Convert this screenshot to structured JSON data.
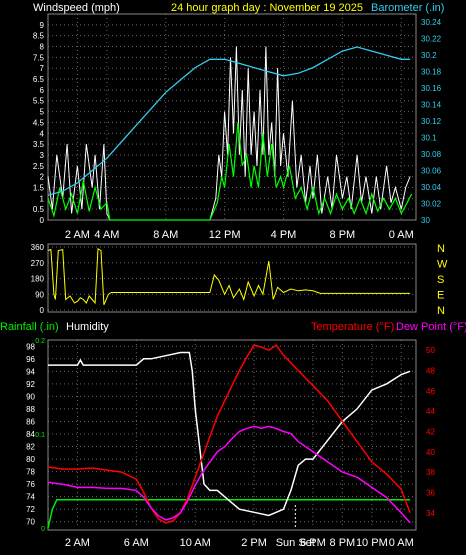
{
  "colors": {
    "wind": "#ffffff",
    "gust": "#00ff00",
    "barometer": "#33ccee",
    "direction": "#ffff00",
    "rain": "#00ee00",
    "humidity": "#ffffff",
    "temperature": "#ff0000",
    "dewpoint": "#ff00ff",
    "axis": "#ffffff",
    "grid": "#666666",
    "left_label": "#ffffff",
    "sunset_marker": "#ffffff"
  },
  "chart_data": [
    {
      "type": "line",
      "title": "24 hour graph day : November 19 2025",
      "left_axis_label": "Windspeed (mph)",
      "right_axis_label": "Barometer (.in)",
      "x_tick_labels": [
        "2 AM",
        "4 AM",
        "8 AM",
        "12 PM",
        "4 PM",
        "8 PM",
        "0 AM"
      ],
      "x_tick_hours": [
        2,
        4,
        8,
        12,
        16,
        20,
        24
      ],
      "xlim": [
        0,
        25
      ],
      "ylim": [
        0,
        9.5
      ],
      "y_ticks": [
        "0",
        "0.5",
        "1",
        "1.5",
        "2",
        "2.5",
        "3",
        "3.5",
        "4",
        "4.5",
        "5",
        "5.5",
        "6",
        "6.5",
        "7",
        "7.5",
        "8",
        "8.5",
        "9"
      ],
      "y2lim": [
        30.0,
        30.25
      ],
      "y2_ticks": [
        "30",
        "30.02",
        "30.04",
        "30.06",
        "30.08",
        "30.1",
        "30.12",
        "30.14",
        "30.16",
        "30.18",
        "30.2",
        "30.22",
        "30.24"
      ],
      "series": [
        {
          "key": "wind",
          "x": [
            0,
            0.3,
            0.6,
            1,
            1.3,
            1.6,
            2,
            2.3,
            2.6,
            3,
            3.2,
            3.5,
            3.8,
            4,
            4.2,
            4.5,
            5,
            6,
            7,
            8,
            9,
            10,
            11,
            11.4,
            11.6,
            11.8,
            12,
            12.2,
            12.4,
            12.6,
            12.8,
            13,
            13.2,
            13.4,
            13.6,
            13.8,
            14,
            14.2,
            14.4,
            14.6,
            14.8,
            15,
            15.2,
            15.4,
            15.6,
            15.8,
            16,
            16.3,
            16.6,
            16.9,
            17.2,
            17.5,
            17.8,
            18,
            18.3,
            18.6,
            19,
            19.3,
            19.6,
            20,
            20.3,
            20.6,
            21,
            21.3,
            21.6,
            22,
            22.3,
            22.6,
            23,
            23.3,
            23.6,
            24,
            24.3,
            24.6
          ],
          "y": [
            2,
            0.5,
            3,
            1,
            3.5,
            0.3,
            2.5,
            0.5,
            3.5,
            1.5,
            3,
            0.5,
            3.5,
            0.3,
            0,
            0,
            0,
            0,
            0,
            0,
            0,
            0,
            0,
            1,
            3,
            2,
            5,
            3,
            7.5,
            4,
            8,
            3,
            6,
            2,
            7,
            3,
            5,
            2.5,
            6,
            3,
            8,
            3,
            4.5,
            2,
            7,
            2.5,
            4,
            2,
            5.5,
            1.5,
            3,
            0.8,
            2.5,
            1,
            3,
            0.3,
            2,
            0.5,
            3,
            1,
            2,
            0.5,
            3,
            0.8,
            2,
            0.3,
            2,
            0.5,
            2.5,
            0.8,
            1.5,
            0.5,
            1.5,
            2
          ]
        },
        {
          "key": "gust",
          "x": [
            0,
            0.4,
            0.8,
            1.2,
            1.6,
            2,
            2.4,
            2.8,
            3.2,
            3.6,
            4,
            4.2,
            5,
            6,
            7,
            8,
            9,
            10,
            11,
            11.5,
            11.8,
            12,
            12.3,
            12.6,
            12.9,
            13.2,
            13.5,
            13.8,
            14,
            14.3,
            14.6,
            14.9,
            15.2,
            15.5,
            15.8,
            16,
            16.4,
            16.8,
            17.2,
            17.6,
            18,
            18.4,
            18.8,
            19.2,
            19.6,
            20,
            20.4,
            20.8,
            21.2,
            21.6,
            22,
            22.4,
            22.8,
            23.2,
            23.6,
            24,
            24.4,
            24.7
          ],
          "y": [
            1,
            0.2,
            1.5,
            0.5,
            1.2,
            0.3,
            1.8,
            0.4,
            1.5,
            0.5,
            0.8,
            0,
            0,
            0,
            0,
            0,
            0,
            0,
            0,
            0.8,
            2,
            1.5,
            3.5,
            2,
            4.5,
            2.5,
            3,
            1.5,
            2.5,
            1.5,
            4,
            2,
            3.5,
            1.5,
            2,
            1.5,
            2.5,
            1,
            1.5,
            0.5,
            1.5,
            0.3,
            1,
            0.3,
            1.2,
            0.5,
            1,
            0.3,
            1,
            0.3,
            1.2,
            0.4,
            1,
            0.5,
            1,
            0.3,
            0.8,
            1.2
          ]
        },
        {
          "key": "barometer",
          "x": [
            0,
            1,
            2,
            3,
            4,
            5,
            6,
            7,
            8,
            9,
            10,
            11,
            12,
            13,
            14,
            15,
            16,
            17,
            18,
            19,
            20,
            21,
            22,
            23,
            24,
            24.6
          ],
          "y": [
            30.03,
            30.035,
            30.045,
            30.06,
            30.075,
            30.095,
            30.115,
            30.135,
            30.155,
            30.17,
            30.185,
            30.195,
            30.195,
            30.19,
            30.185,
            30.18,
            30.175,
            30.178,
            30.185,
            30.195,
            30.205,
            30.21,
            30.205,
            30.2,
            30.195,
            30.195
          ]
        }
      ]
    },
    {
      "type": "line",
      "title": "",
      "right_labels": [
        "N",
        "W",
        "S",
        "E",
        "N"
      ],
      "y_ticks": [
        "360",
        "270",
        "180",
        "90",
        "0"
      ],
      "ylim": [
        0,
        360
      ],
      "xlim": [
        0,
        25
      ],
      "series": [
        {
          "key": "direction",
          "x": [
            0,
            0.2,
            0.4,
            0.5,
            0.7,
            1,
            1.2,
            1.5,
            1.8,
            2,
            2.2,
            2.4,
            2.6,
            2.8,
            3,
            3.2,
            3.4,
            3.6,
            3.8,
            4,
            4.1,
            4.3,
            5,
            6,
            7,
            8,
            9,
            10,
            11,
            11.3,
            11.6,
            12,
            12.3,
            12.6,
            13,
            13.3,
            13.6,
            14,
            14.3,
            14.6,
            15,
            15.3,
            15.6,
            16,
            16.5,
            17,
            17.5,
            18,
            18.5,
            19,
            20,
            21,
            22,
            23,
            24,
            24.6
          ],
          "y": [
            340,
            345,
            90,
            60,
            340,
            345,
            60,
            80,
            40,
            50,
            70,
            60,
            40,
            80,
            60,
            40,
            350,
            340,
            30,
            70,
            90,
            100,
            100,
            100,
            100,
            100,
            100,
            100,
            100,
            200,
            170,
            90,
            140,
            70,
            120,
            60,
            160,
            80,
            140,
            90,
            280,
            60,
            130,
            100,
            120,
            110,
            115,
            110,
            95,
            95,
            95,
            95,
            95,
            95,
            95,
            95
          ]
        }
      ]
    },
    {
      "type": "line",
      "title": "",
      "left_axis_label": "Rainfall (.in)",
      "left_axis_label2": "Humidity",
      "right_axis_label": "Temperature (°F)",
      "right_axis_label2": "Dew Point (°F)",
      "x_tick_labels": [
        "2 AM",
        "6 AM",
        "10 AM",
        "2 PM",
        "6 PM",
        "8 PM",
        "10 PM",
        "0 AM"
      ],
      "x_tick_hours": [
        2,
        6,
        10,
        14,
        18,
        20,
        22,
        24
      ],
      "annotation": "Sun Set",
      "annotation_hour": 16.8,
      "xlim": [
        0,
        25
      ],
      "ylim": [
        69,
        99
      ],
      "y_ticks": [
        "70",
        "72",
        "74",
        "76",
        "78",
        "80",
        "82",
        "84",
        "86",
        "88",
        "90",
        "92",
        "94",
        "96",
        "98"
      ],
      "rain_ticks": [
        "0",
        "0.1",
        "0.2"
      ],
      "rain_lim": [
        0,
        0.2
      ],
      "y2lim": [
        32.5,
        51
      ],
      "y2_ticks": [
        "34",
        "36",
        "38",
        "40",
        "42",
        "44",
        "46",
        "48",
        "50"
      ],
      "series": [
        {
          "key": "humidity",
          "x": [
            0,
            1,
            2,
            2.2,
            2.4,
            3,
            4,
            5,
            6,
            6.5,
            7,
            8,
            9,
            9.6,
            9.8,
            10,
            10.3,
            10.6,
            11,
            11.5,
            12,
            13,
            14,
            15,
            15.5,
            16,
            16.5,
            17,
            17.5,
            18,
            19,
            20,
            21,
            22,
            23,
            24,
            24.6
          ],
          "y": [
            95,
            95,
            95,
            95.8,
            95,
            95,
            95,
            95,
            95,
            96,
            96,
            96.5,
            97,
            97,
            94,
            88,
            82,
            76,
            75,
            75,
            74,
            72,
            71.5,
            71,
            71.5,
            72,
            75,
            79,
            80,
            80,
            83,
            86,
            88,
            91,
            92,
            93.5,
            94
          ]
        },
        {
          "key": "temperature",
          "x": [
            0,
            1,
            2,
            3,
            4,
            5,
            6,
            6.5,
            7,
            7.5,
            8,
            8.5,
            9,
            9.5,
            10,
            10.5,
            11,
            11.5,
            12,
            12.5,
            13,
            13.5,
            14,
            14.5,
            15,
            15.5,
            16,
            17,
            18,
            19,
            20,
            21,
            22,
            23,
            24,
            24.6
          ],
          "y": [
            38.5,
            38.3,
            38.3,
            38.4,
            38.2,
            38,
            37.3,
            36,
            34.5,
            33.4,
            33,
            33.2,
            34,
            35.5,
            37.5,
            39.5,
            41.5,
            43.5,
            45,
            46.5,
            48,
            49.3,
            50.5,
            50.3,
            50,
            50.5,
            49.5,
            48,
            46.5,
            45,
            43,
            41,
            39,
            37.8,
            36.3,
            34
          ]
        },
        {
          "key": "dewpoint",
          "x": [
            0,
            1,
            2,
            3,
            4,
            5,
            6,
            6.5,
            7,
            7.5,
            8,
            8.5,
            9,
            9.5,
            10,
            10.5,
            11,
            11.5,
            12,
            12.5,
            13,
            13.5,
            14,
            14.5,
            15,
            15.5,
            16,
            16.5,
            17,
            18,
            19,
            20,
            21,
            22,
            23,
            24,
            24.6
          ],
          "y": [
            37,
            36.8,
            36.5,
            36.5,
            36.4,
            36.4,
            36.2,
            35.5,
            34.5,
            33.7,
            33.3,
            33.5,
            34,
            35.2,
            36.7,
            38,
            39,
            40,
            40.5,
            41.3,
            42,
            42.3,
            42.5,
            42.3,
            42.5,
            42.3,
            42,
            41.8,
            41,
            40,
            39,
            38,
            37.5,
            36.5,
            35.5,
            34,
            33
          ]
        },
        {
          "key": "rain",
          "x": [
            0,
            0.3,
            0.6,
            24.6
          ],
          "y": [
            0,
            0.02,
            0.03,
            0.03
          ]
        }
      ]
    }
  ]
}
